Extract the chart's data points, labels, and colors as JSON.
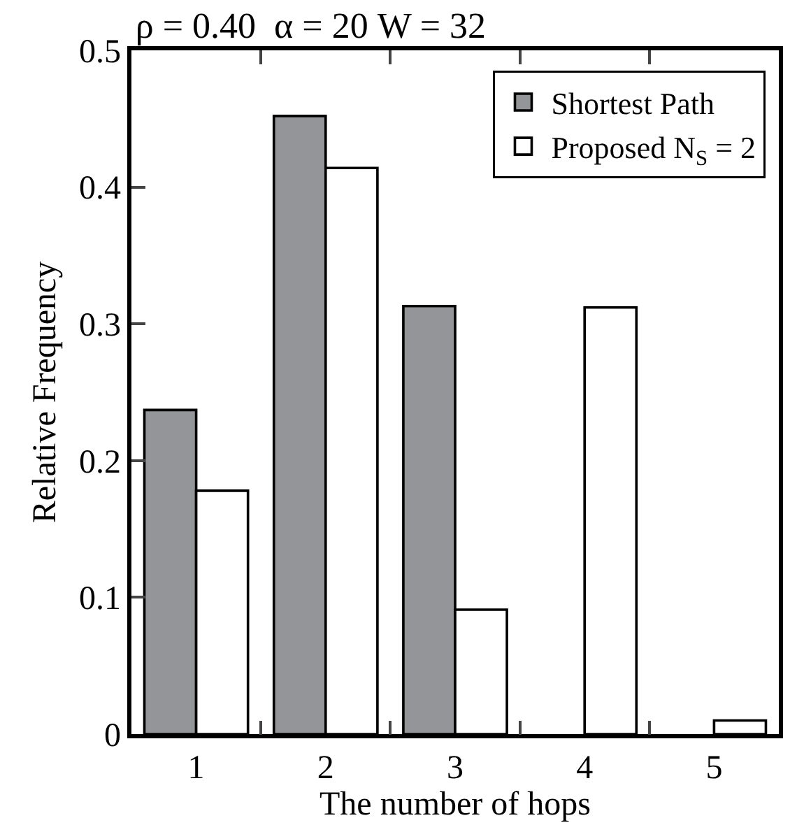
{
  "chart_data": {
    "type": "bar",
    "title": "ρ = 0.40  α = 20 W = 32",
    "xlabel": "The number of hops",
    "ylabel": "Relative Frequency",
    "categories": [
      "1",
      "2",
      "3",
      "4",
      "5"
    ],
    "series": [
      {
        "name": "Shortest Path",
        "color": "#939598",
        "values": [
          0.237,
          0.452,
          0.313,
          0,
          0
        ]
      },
      {
        "name": "Proposed N$_{S}$ = 2",
        "color": "#ffffff",
        "values": [
          0.178,
          0.414,
          0.091,
          0.312,
          0.01
        ]
      }
    ],
    "ylim": [
      0,
      0.5
    ],
    "yticks": [
      0,
      0.1,
      0.2,
      0.3,
      0.4,
      0.5
    ],
    "grid": false,
    "legend": "top right"
  }
}
